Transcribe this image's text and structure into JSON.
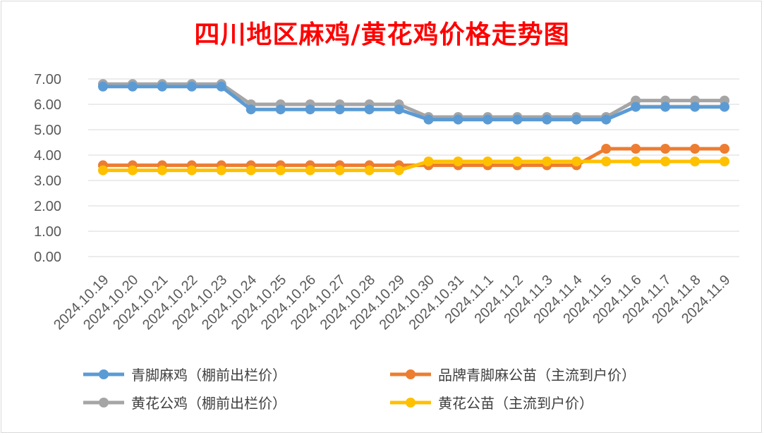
{
  "chart_data": {
    "type": "line",
    "title": "四川地区麻鸡/黄花鸡价格走势图",
    "xlabel": "",
    "ylabel": "",
    "ylim": [
      0,
      7
    ],
    "yticks": [
      "0.00",
      "1.00",
      "2.00",
      "3.00",
      "4.00",
      "5.00",
      "6.00",
      "7.00"
    ],
    "grid": true,
    "legend_position": "bottom",
    "categories": [
      "2024.10.19",
      "2024.10.20",
      "2024.10.21",
      "2024.10.22",
      "2024.10.23",
      "2024.10.24",
      "2024.10.25",
      "2024.10.26",
      "2024.10.27",
      "2024.10.28",
      "2024.10.29",
      "2024.10.30",
      "2024.10.31",
      "2024.11.1",
      "2024.11.2",
      "2024.11.3",
      "2024.11.4",
      "2024.11.5",
      "2024.11.6",
      "2024.11.7",
      "2024.11.8",
      "2024.11.9"
    ],
    "series": [
      {
        "name": "青脚麻鸡（棚前出栏价）",
        "color": "#5b9bd5",
        "values": [
          6.7,
          6.7,
          6.7,
          6.7,
          6.7,
          5.8,
          5.8,
          5.8,
          5.8,
          5.8,
          5.8,
          5.4,
          5.4,
          5.4,
          5.4,
          5.4,
          5.4,
          5.4,
          5.9,
          5.9,
          5.9,
          5.9
        ]
      },
      {
        "name": "品牌青脚麻公苗（主流到户价）",
        "color": "#ed7d31",
        "values": [
          3.6,
          3.6,
          3.6,
          3.6,
          3.6,
          3.6,
          3.6,
          3.6,
          3.6,
          3.6,
          3.6,
          3.6,
          3.6,
          3.6,
          3.6,
          3.6,
          3.6,
          4.25,
          4.25,
          4.25,
          4.25,
          4.25
        ]
      },
      {
        "name": "黄花公鸡（棚前出栏价）",
        "color": "#a5a5a5",
        "values": [
          6.8,
          6.8,
          6.8,
          6.8,
          6.8,
          6.0,
          6.0,
          6.0,
          6.0,
          6.0,
          6.0,
          5.5,
          5.5,
          5.5,
          5.5,
          5.5,
          5.5,
          5.5,
          6.15,
          6.15,
          6.15,
          6.15
        ]
      },
      {
        "name": "黄花公苗（主流到户价）",
        "color": "#ffc000",
        "values": [
          3.4,
          3.4,
          3.4,
          3.4,
          3.4,
          3.4,
          3.4,
          3.4,
          3.4,
          3.4,
          3.4,
          3.75,
          3.75,
          3.75,
          3.75,
          3.75,
          3.75,
          3.75,
          3.75,
          3.75,
          3.75,
          3.75
        ]
      }
    ]
  }
}
